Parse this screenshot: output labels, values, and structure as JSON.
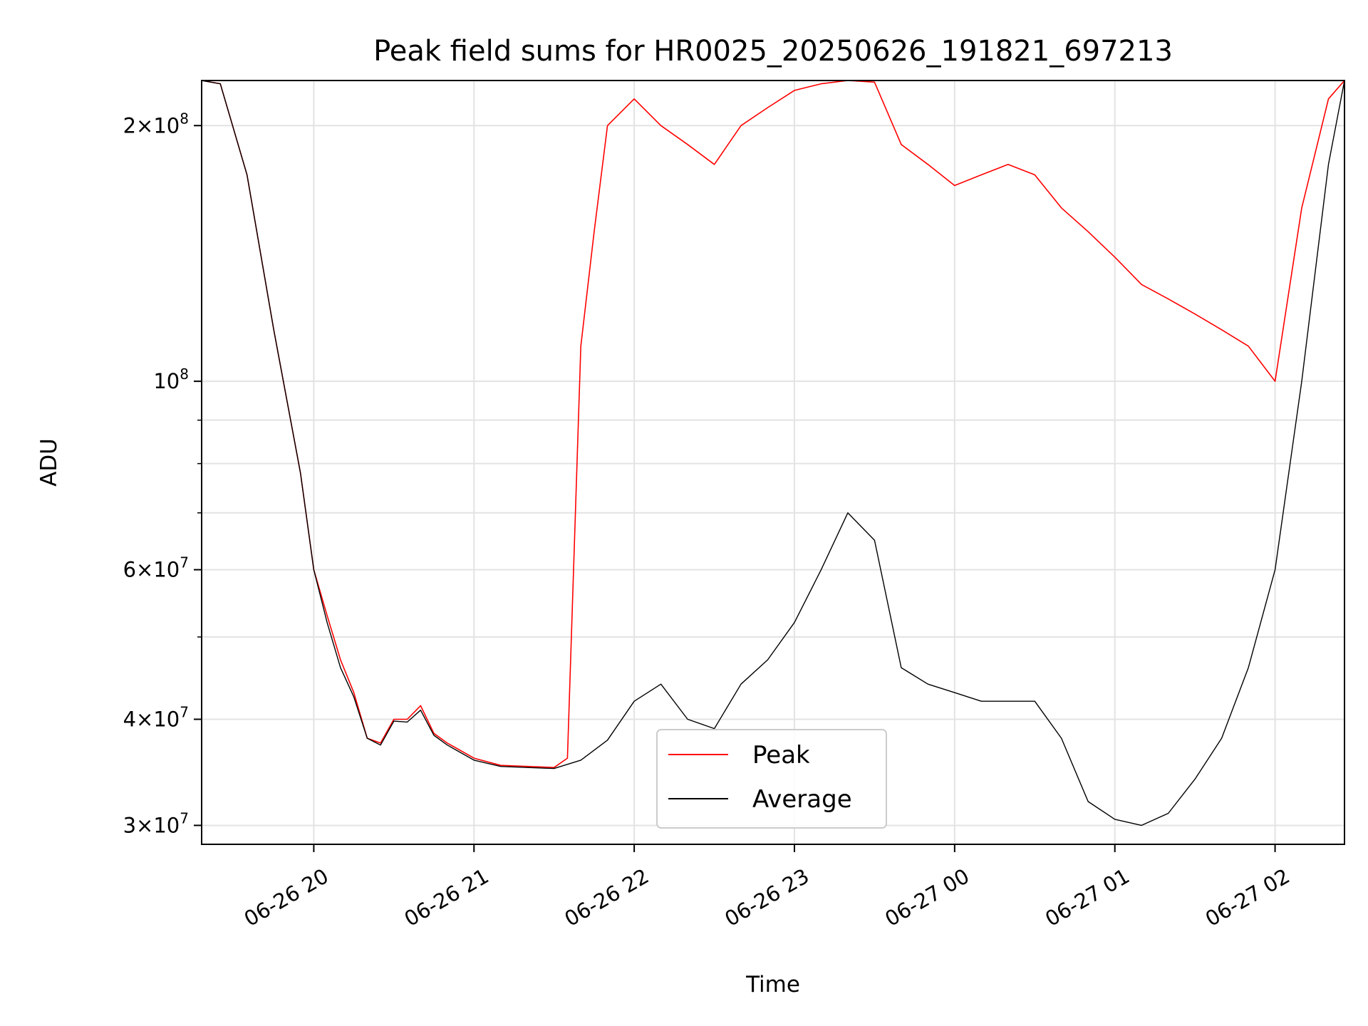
{
  "chart_data": {
    "type": "line",
    "title": "Peak field sums for HR0025_20250626_191821_697213",
    "xlabel": "Time",
    "ylabel": "ADU",
    "yscale": "log",
    "ylim": [
      28500000,
      226000000
    ],
    "xlim": [
      "2025-06-26T19:18",
      "2025-06-27T02:26"
    ],
    "grid": true,
    "legend_position": "lower-center",
    "x_ticks": [
      {
        "x": "2025-06-26T20:00",
        "label": "06-26 20"
      },
      {
        "x": "2025-06-26T21:00",
        "label": "06-26 21"
      },
      {
        "x": "2025-06-26T22:00",
        "label": "06-26 22"
      },
      {
        "x": "2025-06-26T23:00",
        "label": "06-26 23"
      },
      {
        "x": "2025-06-27T00:00",
        "label": "06-27 00"
      },
      {
        "x": "2025-06-27T01:00",
        "label": "06-27 01"
      },
      {
        "x": "2025-06-27T02:00",
        "label": "06-27 02"
      }
    ],
    "y_ticks": [
      {
        "y": 30000000,
        "base": "3×10",
        "exp": "7"
      },
      {
        "y": 40000000,
        "base": "4×10",
        "exp": "7"
      },
      {
        "y": 60000000,
        "base": "6×10",
        "exp": "7"
      },
      {
        "y": 100000000,
        "base": "10",
        "exp": "8"
      },
      {
        "y": 200000000,
        "base": "2×10",
        "exp": "8"
      }
    ],
    "y_minor_ticks": [
      50000000,
      70000000,
      80000000,
      90000000
    ],
    "series": [
      {
        "name": "Peak",
        "color": "#ff0000",
        "x": [
          "2025-06-26T19:18",
          "2025-06-26T19:25",
          "2025-06-26T19:35",
          "2025-06-26T19:45",
          "2025-06-26T19:55",
          "2025-06-26T20:00",
          "2025-06-26T20:05",
          "2025-06-26T20:10",
          "2025-06-26T20:15",
          "2025-06-26T20:20",
          "2025-06-26T20:25",
          "2025-06-26T20:30",
          "2025-06-26T20:35",
          "2025-06-26T20:40",
          "2025-06-26T20:45",
          "2025-06-26T20:50",
          "2025-06-26T21:00",
          "2025-06-26T21:10",
          "2025-06-26T21:20",
          "2025-06-26T21:30",
          "2025-06-26T21:35",
          "2025-06-26T21:40",
          "2025-06-26T21:45",
          "2025-06-26T21:50",
          "2025-06-26T22:00",
          "2025-06-26T22:10",
          "2025-06-26T22:20",
          "2025-06-26T22:30",
          "2025-06-26T22:40",
          "2025-06-26T22:50",
          "2025-06-26T23:00",
          "2025-06-26T23:10",
          "2025-06-26T23:20",
          "2025-06-26T23:30",
          "2025-06-26T23:40",
          "2025-06-26T23:50",
          "2025-06-27T00:00",
          "2025-06-27T00:10",
          "2025-06-27T00:20",
          "2025-06-27T00:30",
          "2025-06-27T00:40",
          "2025-06-27T00:50",
          "2025-06-27T01:00",
          "2025-06-27T01:10",
          "2025-06-27T01:20",
          "2025-06-27T01:30",
          "2025-06-27T01:40",
          "2025-06-27T01:50",
          "2025-06-27T02:00",
          "2025-06-27T02:10",
          "2025-06-27T02:20",
          "2025-06-27T02:26"
        ],
        "y": [
          226000000,
          224000000,
          175000000,
          115000000,
          78000000,
          60000000,
          53000000,
          47000000,
          43000000,
          38000000,
          37500000,
          40000000,
          40000000,
          41500000,
          38500000,
          37500000,
          36000000,
          35300000,
          35200000,
          35100000,
          36000000,
          110000000,
          150000000,
          200000000,
          215000000,
          200000000,
          190000000,
          180000000,
          200000000,
          210000000,
          220000000,
          224000000,
          226000000,
          225000000,
          190000000,
          180000000,
          170000000,
          175000000,
          180000000,
          175000000,
          160000000,
          150000000,
          140000000,
          130000000,
          125000000,
          120000000,
          115000000,
          110000000,
          100000000,
          160000000,
          215000000,
          226000000
        ]
      },
      {
        "name": "Average",
        "color": "#000000",
        "x": [
          "2025-06-26T19:18",
          "2025-06-26T19:25",
          "2025-06-26T19:35",
          "2025-06-26T19:45",
          "2025-06-26T19:55",
          "2025-06-26T20:00",
          "2025-06-26T20:05",
          "2025-06-26T20:10",
          "2025-06-26T20:15",
          "2025-06-26T20:20",
          "2025-06-26T20:25",
          "2025-06-26T20:30",
          "2025-06-26T20:35",
          "2025-06-26T20:40",
          "2025-06-26T20:45",
          "2025-06-26T20:50",
          "2025-06-26T21:00",
          "2025-06-26T21:10",
          "2025-06-26T21:20",
          "2025-06-26T21:30",
          "2025-06-26T21:40",
          "2025-06-26T21:50",
          "2025-06-26T22:00",
          "2025-06-26T22:10",
          "2025-06-26T22:20",
          "2025-06-26T22:30",
          "2025-06-26T22:40",
          "2025-06-26T22:50",
          "2025-06-26T23:00",
          "2025-06-26T23:10",
          "2025-06-26T23:20",
          "2025-06-26T23:30",
          "2025-06-26T23:40",
          "2025-06-26T23:50",
          "2025-06-27T00:00",
          "2025-06-27T00:10",
          "2025-06-27T00:20",
          "2025-06-27T00:30",
          "2025-06-27T00:40",
          "2025-06-27T00:50",
          "2025-06-27T01:00",
          "2025-06-27T01:10",
          "2025-06-27T01:20",
          "2025-06-27T01:30",
          "2025-06-27T01:40",
          "2025-06-27T01:50",
          "2025-06-27T02:00",
          "2025-06-27T02:10",
          "2025-06-27T02:20",
          "2025-06-27T02:26"
        ],
        "y": [
          226000000,
          224000000,
          175000000,
          115000000,
          78000000,
          60000000,
          52000000,
          46000000,
          42500000,
          38000000,
          37300000,
          39800000,
          39700000,
          41000000,
          38300000,
          37300000,
          35800000,
          35200000,
          35100000,
          35000000,
          35800000,
          37800000,
          42000000,
          44000000,
          40000000,
          39000000,
          44000000,
          47000000,
          52000000,
          60000000,
          70000000,
          65000000,
          46000000,
          44000000,
          43000000,
          42000000,
          42000000,
          42000000,
          38000000,
          32000000,
          30500000,
          30000000,
          31000000,
          34000000,
          38000000,
          46000000,
          60000000,
          100000000,
          180000000,
          226000000
        ]
      }
    ]
  }
}
